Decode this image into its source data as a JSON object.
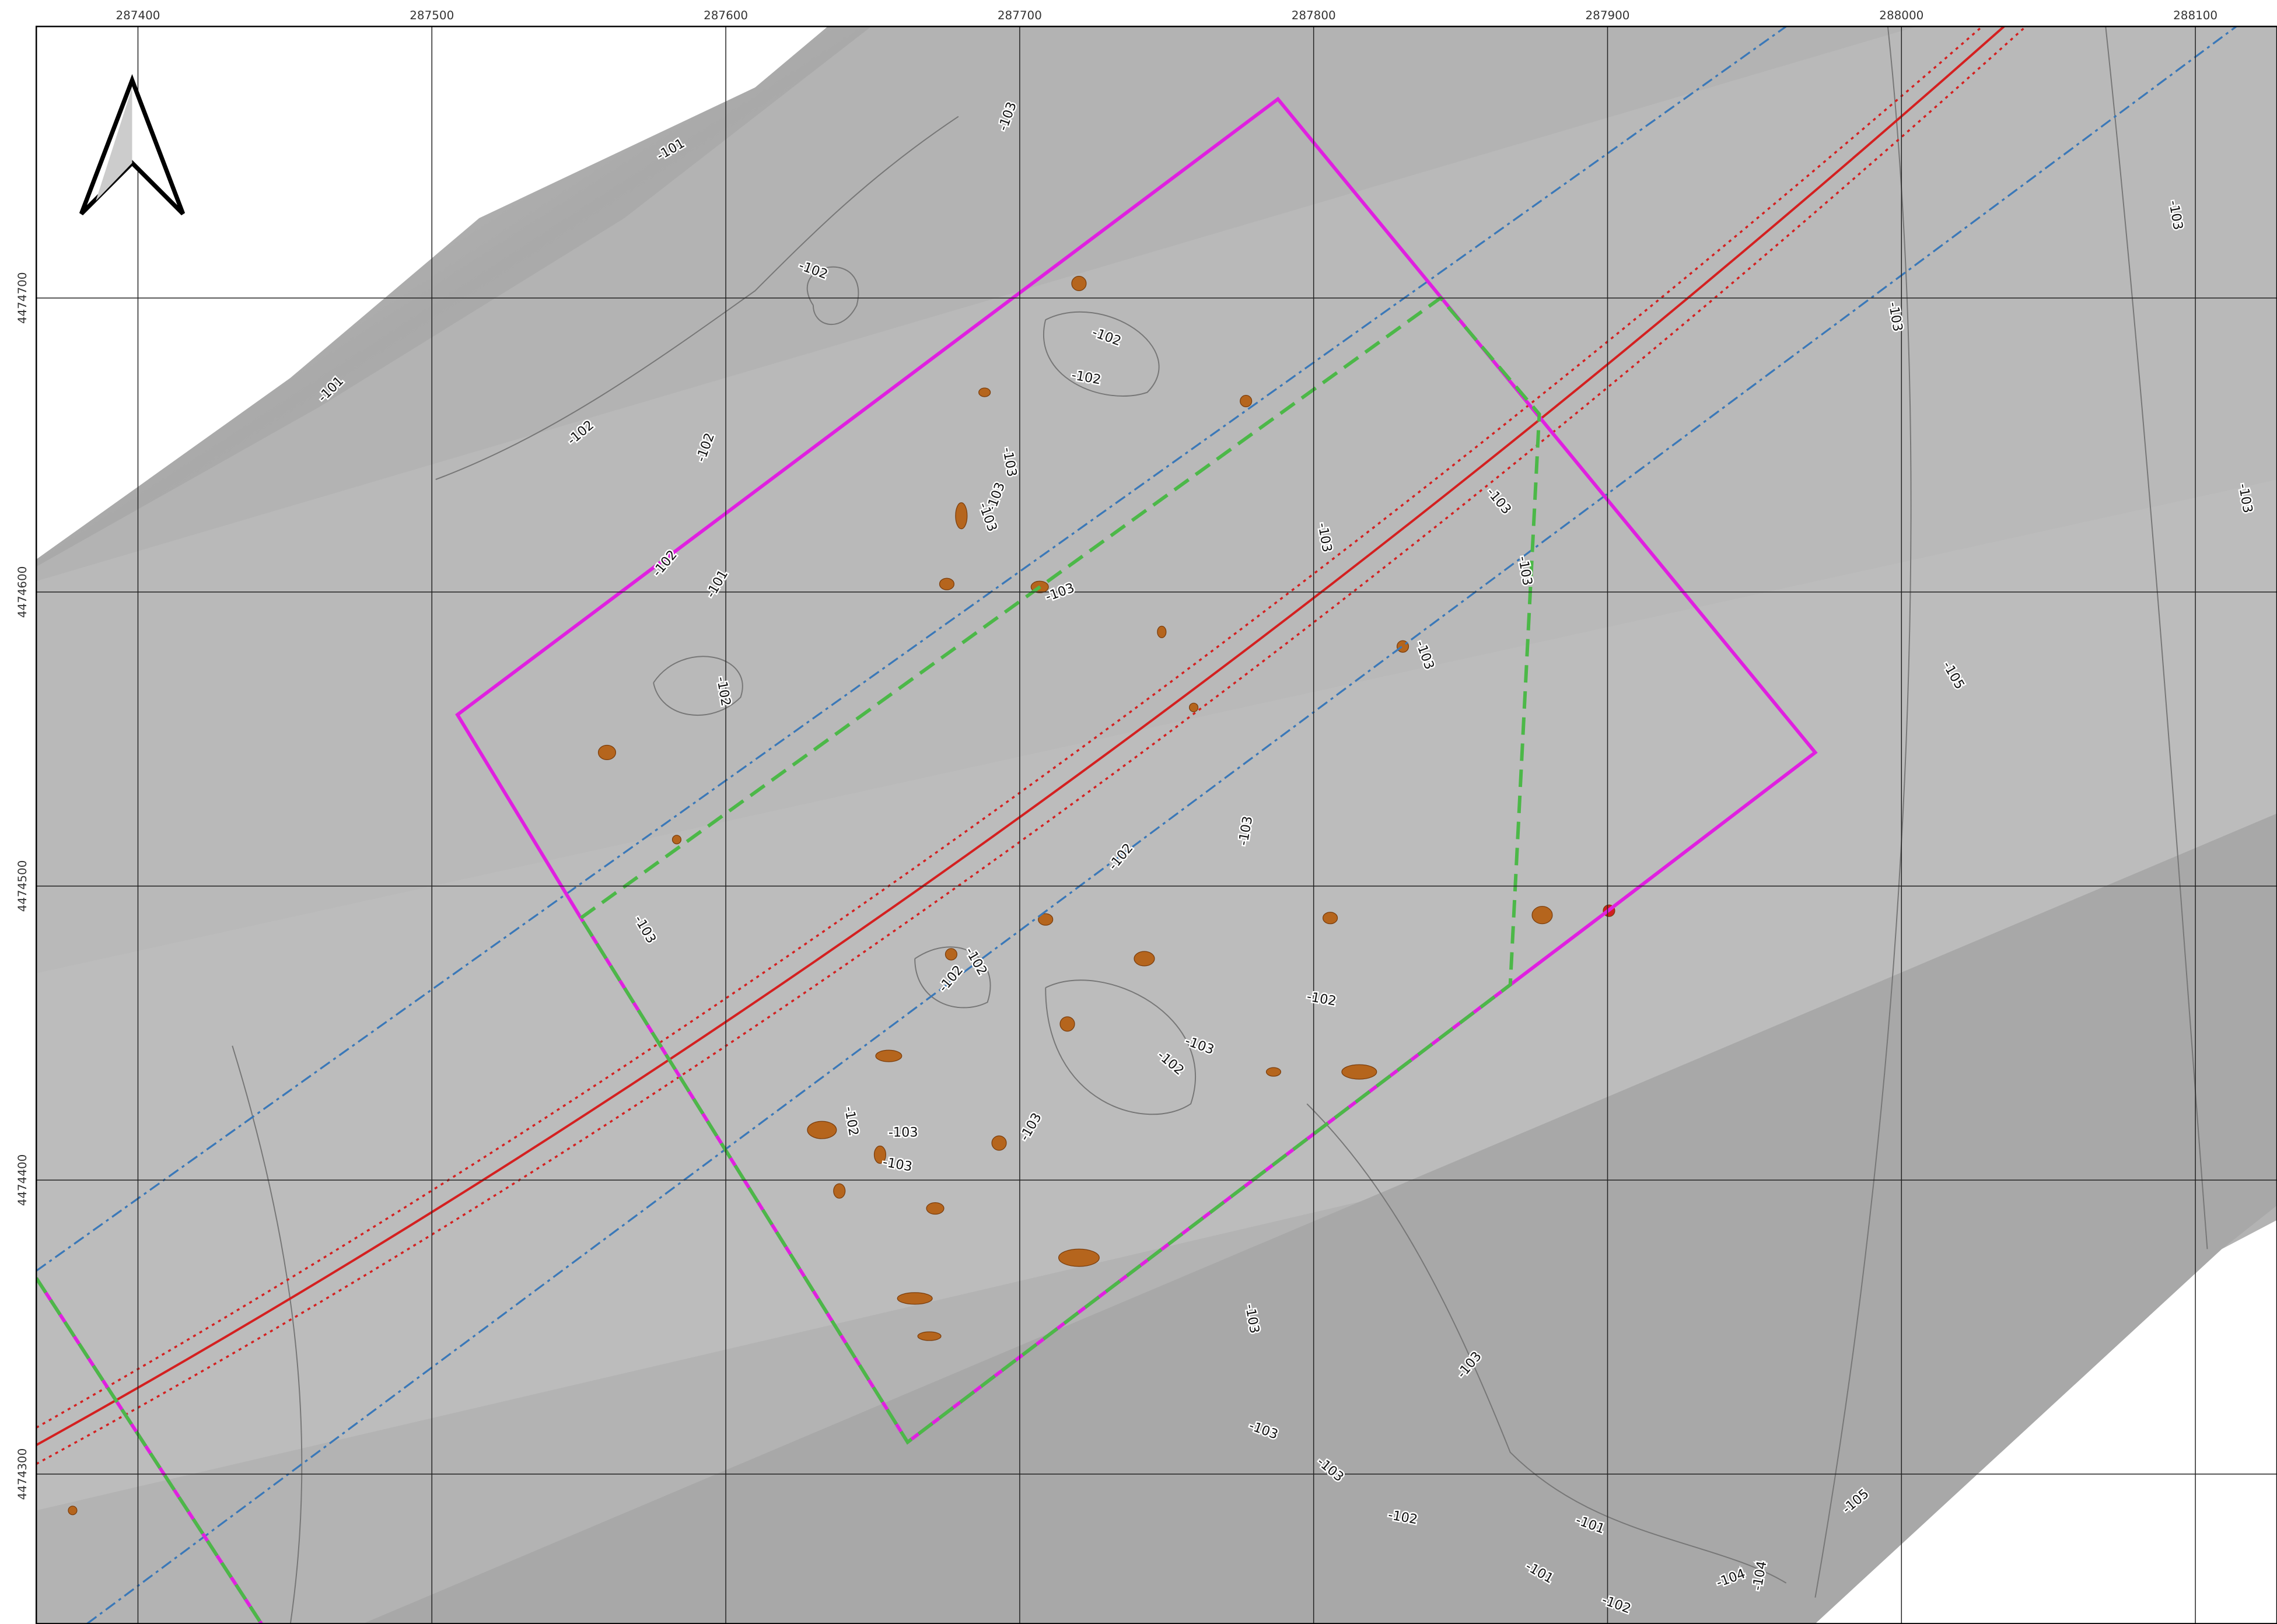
{
  "grid": {
    "eastings": [
      287400,
      287500,
      287600,
      287700,
      287800,
      287900,
      288000,
      288100
    ],
    "northings": [
      4474700,
      4474600,
      4474500,
      4474400,
      4474300
    ]
  },
  "contour_labels": [
    -101,
    -101,
    -102,
    -102,
    -102,
    -102,
    -103,
    -102,
    -102,
    -103,
    -103,
    -103,
    -103,
    -103,
    -101,
    -103,
    -103,
    -102,
    -103,
    -102,
    -103,
    -103,
    -102,
    -102,
    -102,
    -103,
    -102,
    -102,
    -103,
    -103,
    -103,
    -103,
    -103,
    -103,
    -103,
    -102,
    -101,
    -101,
    -102,
    -104,
    -104,
    -105,
    -105,
    -103,
    -103,
    -103
  ]
}
